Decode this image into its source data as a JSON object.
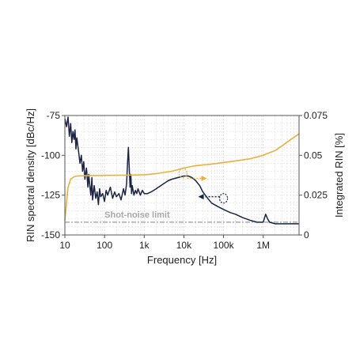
{
  "chart_data": {
    "type": "line",
    "x_scale": "log",
    "xlim": [
      10,
      8000000
    ],
    "xlabel": "Frequency [Hz]",
    "x_ticks": [
      {
        "value": 10,
        "label": "10"
      },
      {
        "value": 100,
        "label": "100"
      },
      {
        "value": 1000,
        "label": "1k"
      },
      {
        "value": 10000,
        "label": "10k"
      },
      {
        "value": 100000,
        "label": "100k"
      },
      {
        "value": 1000000,
        "label": "1M"
      }
    ],
    "ylabel_left": "RIN spectral density [dBc/Hz]",
    "ylim_left": [
      -150,
      -75
    ],
    "left_ticks": [
      {
        "value": -75,
        "label": "-75"
      },
      {
        "value": -100,
        "label": "-100"
      },
      {
        "value": -125,
        "label": "-125"
      },
      {
        "value": -150,
        "label": "-150"
      }
    ],
    "ylabel_right": "Integrated RIN [%]",
    "ylim_right": [
      0,
      0.075
    ],
    "right_ticks": [
      {
        "value": 0,
        "label": "0"
      },
      {
        "value": 0.025,
        "label": "0.025"
      },
      {
        "value": 0.05,
        "label": "0.05"
      },
      {
        "value": 0.075,
        "label": "0.075"
      }
    ],
    "grid": true,
    "annotation": "Shot-noise limit",
    "colors": {
      "rin": "#1b2447",
      "integrated": "#e8b23a",
      "shot_noise": "#9a9a9a",
      "grid": "#d8d8d8",
      "axis": "#555555"
    },
    "series": [
      {
        "axis": "left",
        "color": "#1b2447",
        "x": [
          10,
          11,
          12,
          13,
          14,
          15,
          16,
          17,
          18,
          19,
          20,
          22,
          24,
          26,
          28,
          30,
          32,
          35,
          38,
          40,
          42,
          45,
          48,
          50,
          55,
          60,
          65,
          70,
          75,
          80,
          90,
          100,
          110,
          120,
          140,
          160,
          180,
          200,
          230,
          260,
          300,
          330,
          360,
          380,
          400,
          420,
          440,
          460,
          480,
          500,
          550,
          600,
          650,
          700,
          800,
          900,
          1000,
          1200,
          1500,
          2000,
          3000,
          4000,
          5000,
          7000,
          10000,
          13000,
          16000,
          20000,
          25000,
          30000,
          40000,
          50000,
          70000,
          100000,
          150000,
          200000,
          300000,
          500000,
          700000,
          1000000,
          1150000,
          1300000,
          1450000,
          2000000,
          3000000,
          5000000,
          8000000
        ],
        "y": [
          -77,
          -82,
          -76,
          -88,
          -80,
          -92,
          -85,
          -90,
          -84,
          -96,
          -89,
          -97,
          -105,
          -100,
          -110,
          -104,
          -115,
          -108,
          -120,
          -112,
          -118,
          -125,
          -114,
          -128,
          -119,
          -127,
          -123,
          -131,
          -121,
          -126,
          -124,
          -129,
          -122,
          -125,
          -120,
          -127,
          -123,
          -126,
          -124,
          -128,
          -121,
          -125,
          -118,
          -105,
          -95,
          -108,
          -120,
          -112,
          -124,
          -119,
          -125,
          -122,
          -124,
          -121,
          -125,
          -122,
          -124,
          -124,
          -123,
          -121,
          -118,
          -116,
          -115,
          -114,
          -113,
          -113,
          -114,
          -116,
          -119,
          -123,
          -127,
          -130,
          -132,
          -134,
          -136,
          -137,
          -139,
          -141,
          -142,
          -142,
          -137,
          -140,
          -142,
          -143,
          -143,
          -143,
          -143
        ]
      },
      {
        "axis": "right",
        "color": "#e8b23a",
        "x": [
          10,
          11,
          12,
          14,
          17,
          20,
          30,
          50,
          100,
          300,
          1000,
          2000,
          5000,
          10000,
          20000,
          50000,
          100000,
          200000,
          500000,
          1000000,
          2000000,
          3000000,
          5000000,
          8000000
        ],
        "y": [
          0.009,
          0.02,
          0.03,
          0.035,
          0.0365,
          0.037,
          0.0372,
          0.0373,
          0.0374,
          0.0375,
          0.0378,
          0.0385,
          0.04,
          0.042,
          0.0435,
          0.0445,
          0.0455,
          0.0465,
          0.048,
          0.05,
          0.053,
          0.056,
          0.06,
          0.0635
        ]
      }
    ],
    "shot_noise_level": -142
  }
}
